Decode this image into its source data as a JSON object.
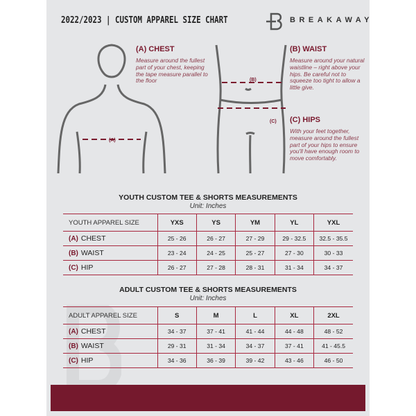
{
  "header": {
    "title": "2022/2023  |  CUSTOM APPAREL SIZE CHART",
    "brand": "BREAKAWAY"
  },
  "guide": {
    "chest": {
      "heading": "(A) CHEST",
      "desc": "Measure around the fullest part of your chest, keeping the tape measure parallel to the floor",
      "marker": "(A)"
    },
    "waist": {
      "heading": "(B) WAIST",
      "desc": "Measure around your natural waistline – right above your hips. Be careful not to squeeze too tight to allow a little give.",
      "marker": "(B)"
    },
    "hips": {
      "heading": "(C) HIPS",
      "desc": "With your feet together, measure around the fullest part of your hips to ensure you'll have enough room to move comfortably.",
      "marker": "(C)"
    }
  },
  "youth": {
    "title": "YOUTH CUSTOM TEE & SHORTS MEASUREMENTS",
    "unit": "Unit: Inches",
    "header": [
      "YOUTH APPAREL SIZE",
      "YXS",
      "YS",
      "YM",
      "YL",
      "YXL"
    ],
    "rows": [
      {
        "letter": "(A)",
        "label": "CHEST",
        "values": [
          "25 - 26",
          "26 - 27",
          "27 - 29",
          "29 - 32.5",
          "32.5 - 35.5"
        ]
      },
      {
        "letter": "(B)",
        "label": "WAIST",
        "values": [
          "23 - 24",
          "24 - 25",
          "25 - 27",
          "27 - 30",
          "30 - 33"
        ]
      },
      {
        "letter": "(C)",
        "label": "HIP",
        "values": [
          "26 - 27",
          "27 - 28",
          "28 - 31",
          "31 - 34",
          "34 - 37"
        ]
      }
    ]
  },
  "adult": {
    "title": "ADULT CUSTOM TEE & SHORTS MEASUREMENTS",
    "unit": "Unit: Inches",
    "header": [
      "ADULT APPAREL SIZE",
      "S",
      "M",
      "L",
      "XL",
      "2XL"
    ],
    "rows": [
      {
        "letter": "(A)",
        "label": "CHEST",
        "values": [
          "34 - 37",
          "37 - 41",
          "41 - 44",
          "44 - 48",
          "48 - 52"
        ]
      },
      {
        "letter": "(B)",
        "label": "WAIST",
        "values": [
          "29 - 31",
          "31 - 34",
          "34 - 37",
          "37 - 41",
          "41 - 45.5"
        ]
      },
      {
        "letter": "(C)",
        "label": "HIP",
        "values": [
          "34 - 36",
          "36 - 39",
          "39 - 42",
          "43 - 46",
          "46 - 50"
        ]
      }
    ]
  },
  "colors": {
    "accent": "#75192d",
    "background": "#e5e6e8"
  }
}
